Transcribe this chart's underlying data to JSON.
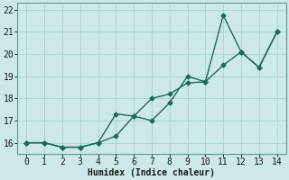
{
  "xlabel": "Humidex (Indice chaleur)",
  "ylabel": "",
  "background_color": "#cde8e8",
  "line_color": "#1a6b5a",
  "xlim": [
    -0.5,
    14.5
  ],
  "ylim": [
    15.5,
    22.3
  ],
  "xticks": [
    0,
    1,
    2,
    3,
    4,
    5,
    6,
    7,
    8,
    9,
    10,
    11,
    12,
    13,
    14
  ],
  "yticks": [
    16,
    17,
    18,
    19,
    20,
    21,
    22
  ],
  "series1_x": [
    0,
    1,
    2,
    3,
    4,
    5,
    6,
    7,
    8,
    9,
    10,
    11,
    12,
    13,
    14
  ],
  "series1_y": [
    16.0,
    16.0,
    15.8,
    15.8,
    16.0,
    16.3,
    17.2,
    17.0,
    17.8,
    19.0,
    18.75,
    21.75,
    20.1,
    19.4,
    21.0
  ],
  "series2_x": [
    0,
    1,
    2,
    3,
    4,
    5,
    6,
    7,
    8,
    9,
    10,
    11,
    12,
    13,
    14
  ],
  "series2_y": [
    16.0,
    16.0,
    15.8,
    15.8,
    16.0,
    17.3,
    17.2,
    18.0,
    18.2,
    18.7,
    18.75,
    19.5,
    20.1,
    19.4,
    21.0
  ],
  "grid_color": "#aad4d4",
  "font_size_axis": 7,
  "font_size_ticks": 7,
  "marker": "D",
  "marker_size": 2.5,
  "line_width": 1.0
}
